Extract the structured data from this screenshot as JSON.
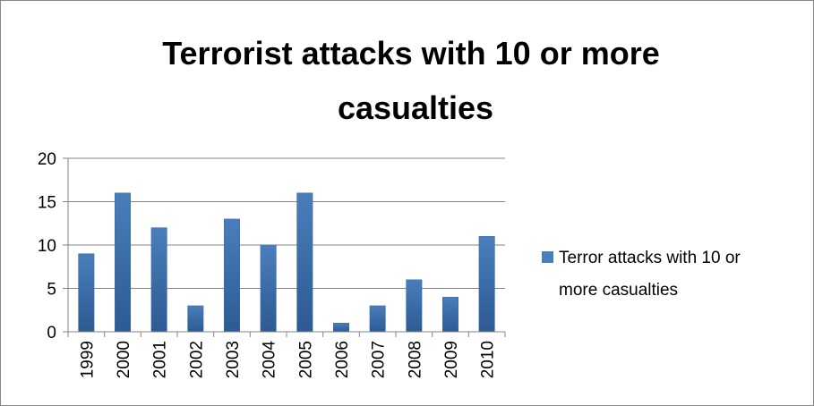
{
  "chart_data": {
    "type": "bar",
    "title": "Terrorist attacks with 10 or more casualties",
    "title_lines": [
      "Terrorist attacks with 10 or more",
      "casualties"
    ],
    "categories": [
      "1999",
      "2000",
      "2001",
      "2002",
      "2003",
      "2004",
      "2005",
      "2006",
      "2007",
      "2008",
      "2009",
      "2010"
    ],
    "series": [
      {
        "name": "Terror attacks with 10 or more casualties",
        "legend_lines": [
          "Terror attacks with 10 or",
          "more casualties"
        ],
        "values": [
          9,
          16,
          12,
          3,
          13,
          10,
          16,
          1,
          3,
          6,
          4,
          11
        ],
        "color": "#4a7ebb"
      }
    ],
    "ylim": [
      0,
      20
    ],
    "yticks": [
      0,
      5,
      10,
      15,
      20
    ],
    "grid": true,
    "legend_position": "right",
    "xlabel": "",
    "ylabel": ""
  }
}
